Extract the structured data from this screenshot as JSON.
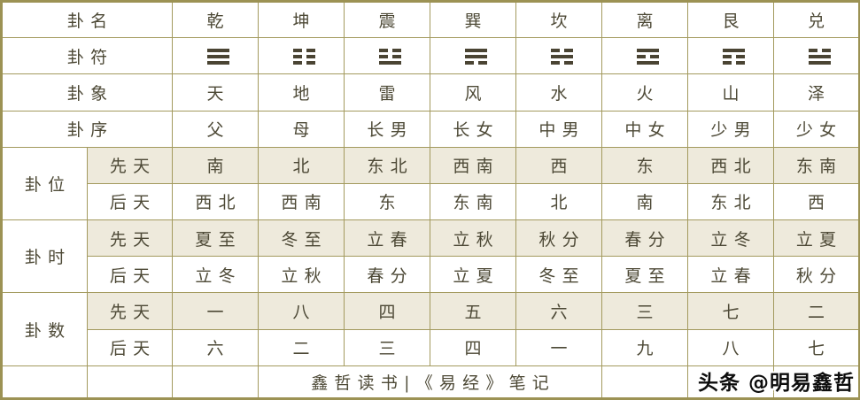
{
  "colors": {
    "border": "#a39a5e",
    "border-dark": "#9c9254",
    "beige": "#eeeadc",
    "ink": "#4d4936",
    "bar": "#4a4433",
    "paper": "#ffffff"
  },
  "table": {
    "names": {
      "label": "卦名",
      "values": [
        "乾",
        "坤",
        "震",
        "巽",
        "坎",
        "离",
        "艮",
        "兑"
      ]
    },
    "symbols": {
      "label": "卦符",
      "trigrams": [
        "111",
        "000",
        "001",
        "110",
        "010",
        "101",
        "100",
        "011"
      ]
    },
    "images": {
      "label": "卦象",
      "values": [
        "天",
        "地",
        "雷",
        "风",
        "水",
        "火",
        "山",
        "泽"
      ]
    },
    "order": {
      "label": "卦序",
      "values": [
        "父",
        "母",
        "长男",
        "长女",
        "中男",
        "中女",
        "少男",
        "少女"
      ]
    },
    "position": {
      "label": "卦位",
      "xiantian_label": "先天",
      "houtian_label": "后天",
      "xiantian": [
        "南",
        "北",
        "东北",
        "西南",
        "西",
        "东",
        "西北",
        "东南"
      ],
      "houtian": [
        "西北",
        "西南",
        "东",
        "东南",
        "北",
        "南",
        "东北",
        "西"
      ]
    },
    "time": {
      "label": "卦时",
      "xiantian_label": "先天",
      "houtian_label": "后天",
      "xiantian": [
        "夏至",
        "冬至",
        "立春",
        "立秋",
        "秋分",
        "春分",
        "立冬",
        "立夏"
      ],
      "houtian": [
        "立冬",
        "立秋",
        "春分",
        "立夏",
        "冬至",
        "夏至",
        "立春",
        "秋分"
      ]
    },
    "number": {
      "label": "卦数",
      "xiantian_label": "先天",
      "houtian_label": "后天",
      "xiantian": [
        "一",
        "八",
        "四",
        "五",
        "六",
        "三",
        "七",
        "二"
      ],
      "houtian": [
        "六",
        "二",
        "三",
        "四",
        "一",
        "九",
        "八",
        "七"
      ]
    },
    "footer": {
      "note": "鑫哲读书|《易经》笔记"
    }
  },
  "watermark": {
    "text": "头条 @明易鑫哲"
  }
}
